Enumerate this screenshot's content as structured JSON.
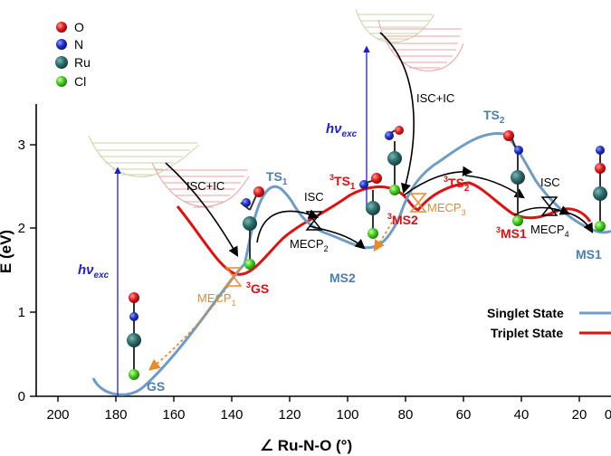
{
  "axes": {
    "xlabel": "∠ Ru-N-O (°)",
    "ylabel": "E (eV)",
    "xticks": [
      "200",
      "180",
      "160",
      "140",
      "120",
      "100",
      "80",
      "60",
      "40",
      "20",
      "0"
    ],
    "yticks": [
      "0",
      "1",
      "2",
      "3"
    ]
  },
  "legend_atoms": [
    {
      "label": "O",
      "color": "#d42020"
    },
    {
      "label": "N",
      "color": "#2233cc"
    },
    {
      "label": "Ru",
      "color": "#2f6f6c"
    },
    {
      "label": "Cl",
      "color": "#44cc22"
    }
  ],
  "legend_states": [
    {
      "label": "Singlet State",
      "color": "#6f9cc6"
    },
    {
      "label": "Triplet State",
      "color": "#e01010"
    }
  ],
  "labels": {
    "gs": "GS",
    "ts1": "TS",
    "ts1_sub": "1",
    "ms2": "MS2",
    "ts2": "TS",
    "ts2_sub": "2",
    "ms1": "MS1",
    "t_gs_sup": "3",
    "t_gs": "GS",
    "t_ts1_sup": "3",
    "t_ts1": "TS",
    "t_ts1_sub": "1",
    "t_ms2_sup": "3",
    "t_ms2": "MS2",
    "t_ts2_sup": "3",
    "t_ts2": "TS",
    "t_ts2_sub": "2",
    "t_ms1_sup": "3",
    "t_ms1": "MS1",
    "mecp1": "MECP",
    "mecp1_sub": "1",
    "mecp2": "MECP",
    "mecp2_sub": "2",
    "mecp3": "MECP",
    "mecp3_sub": "3",
    "mecp4": "MECP",
    "mecp4_sub": "4",
    "isc1": "ISC+IC",
    "isc2": "ISC+IC",
    "isc3": "ISC",
    "isc4": "ISC",
    "hv_h": "hν",
    "hv_sub": "exc"
  },
  "colors": {
    "singlet": "#6f9cc6",
    "triplet": "#e01010",
    "mecp": "#e98a2c",
    "excitation": "#1f1fd0"
  }
}
